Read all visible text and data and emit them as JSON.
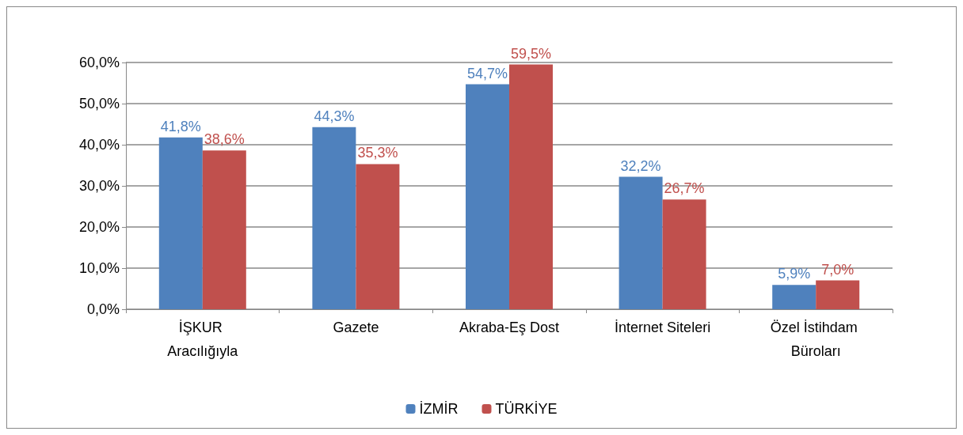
{
  "chart_data": {
    "type": "bar",
    "categories": [
      "İŞKUR Aracılığıyla",
      "Gazete",
      "Akraba-Eş Dost",
      "İnternet Siteleri",
      "Özel İstihdam Büroları"
    ],
    "series": [
      {
        "name": "İZMİR",
        "color": "#4f81bd",
        "values": [
          41.8,
          44.3,
          54.7,
          32.2,
          5.9
        ],
        "value_labels": [
          "41,8%",
          "44,3%",
          "54,7%",
          "32,2%",
          "5,9%"
        ]
      },
      {
        "name": "TÜRKİYE",
        "color": "#c0504d",
        "values": [
          38.6,
          35.3,
          59.5,
          26.7,
          7.0
        ],
        "value_labels": [
          "38,6%",
          "35,3%",
          "59,5%",
          "26,7%",
          "7,0%"
        ]
      }
    ],
    "ylim": [
      0,
      60
    ],
    "yticks": [
      {
        "value": 0,
        "label": "0,0%"
      },
      {
        "value": 10,
        "label": "10,0%"
      },
      {
        "value": 20,
        "label": "20,0%"
      },
      {
        "value": 30,
        "label": "30,0%"
      },
      {
        "value": 40,
        "label": "40,0%"
      },
      {
        "value": 50,
        "label": "50,0%"
      },
      {
        "value": 60,
        "label": "60,0%"
      }
    ],
    "grid": true,
    "legend": "bottom"
  }
}
